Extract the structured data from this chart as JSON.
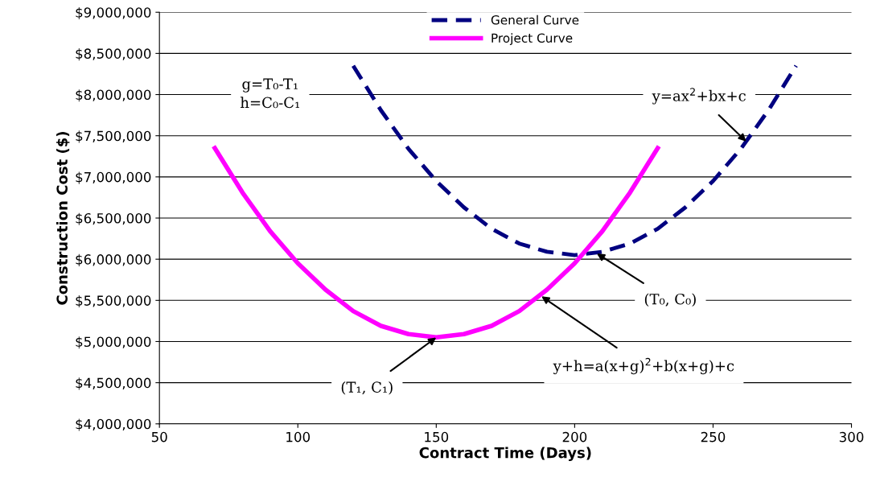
{
  "chart_data": {
    "type": "line",
    "xlabel": "Contract Time (Days)",
    "ylabel": "Construction Cost ($)",
    "xlim": [
      50,
      300
    ],
    "xticks": [
      50,
      100,
      150,
      200,
      250,
      300
    ],
    "ylim": [
      4000000,
      9000000
    ],
    "yticks": [
      {
        "value": 4000000,
        "label": "$4,000,000"
      },
      {
        "value": 4500000,
        "label": "$4,500,000"
      },
      {
        "value": 5000000,
        "label": "$5,000,000"
      },
      {
        "value": 5500000,
        "label": "$5,500,000"
      },
      {
        "value": 6000000,
        "label": "$6,000,000"
      },
      {
        "value": 6500000,
        "label": "$6,500,000"
      },
      {
        "value": 7000000,
        "label": "$7,000,000"
      },
      {
        "value": 7500000,
        "label": "$7,500,000"
      },
      {
        "value": 8000000,
        "label": "$8,000,000"
      },
      {
        "value": 8500000,
        "label": "$8,500,000"
      },
      {
        "value": 9000000,
        "label": "$9,000,000"
      }
    ],
    "grid": "y",
    "legend": "top",
    "marker": "none",
    "series": [
      {
        "name": "General Curve",
        "color": "#000080",
        "line_style": "dashed",
        "x": [
          120,
          130,
          140,
          150,
          160,
          170,
          180,
          190,
          200,
          210,
          220,
          230,
          240,
          250,
          260,
          270,
          280
        ],
        "values": [
          8350000,
          7810000,
          7340000,
          6950000,
          6630000,
          6370000,
          6190000,
          6090000,
          6050000,
          6090000,
          6190000,
          6370000,
          6630000,
          6950000,
          7340000,
          7810000,
          8350000
        ]
      },
      {
        "name": "Project Curve",
        "color": "#ff00ff",
        "line_style": "solid",
        "x": [
          70,
          80,
          90,
          100,
          110,
          120,
          130,
          140,
          150,
          160,
          170,
          180,
          190,
          200,
          210,
          220,
          230
        ],
        "values": [
          7350000,
          6810000,
          6340000,
          5950000,
          5630000,
          5370000,
          5190000,
          5090000,
          5050000,
          5090000,
          5190000,
          5370000,
          5630000,
          5950000,
          6340000,
          6810000,
          7350000
        ]
      }
    ],
    "annotations": [
      "g=T₀-T₁\nh=C₀-C₁",
      {
        "text": "y=ax$^{2}$+bx+c",
        "x": 262,
        "y": 7430000
      },
      {
        "text": "(T₀, C₀)",
        "x": 208,
        "y": 6070000
      },
      {
        "text": "y+h=a(x+g)$^{2}$+b(x+g)+c",
        "x": 188,
        "y": 5550000
      },
      {
        "text": "(T₁, C₁)",
        "x": 150,
        "y": 5050000
      }
    ]
  }
}
